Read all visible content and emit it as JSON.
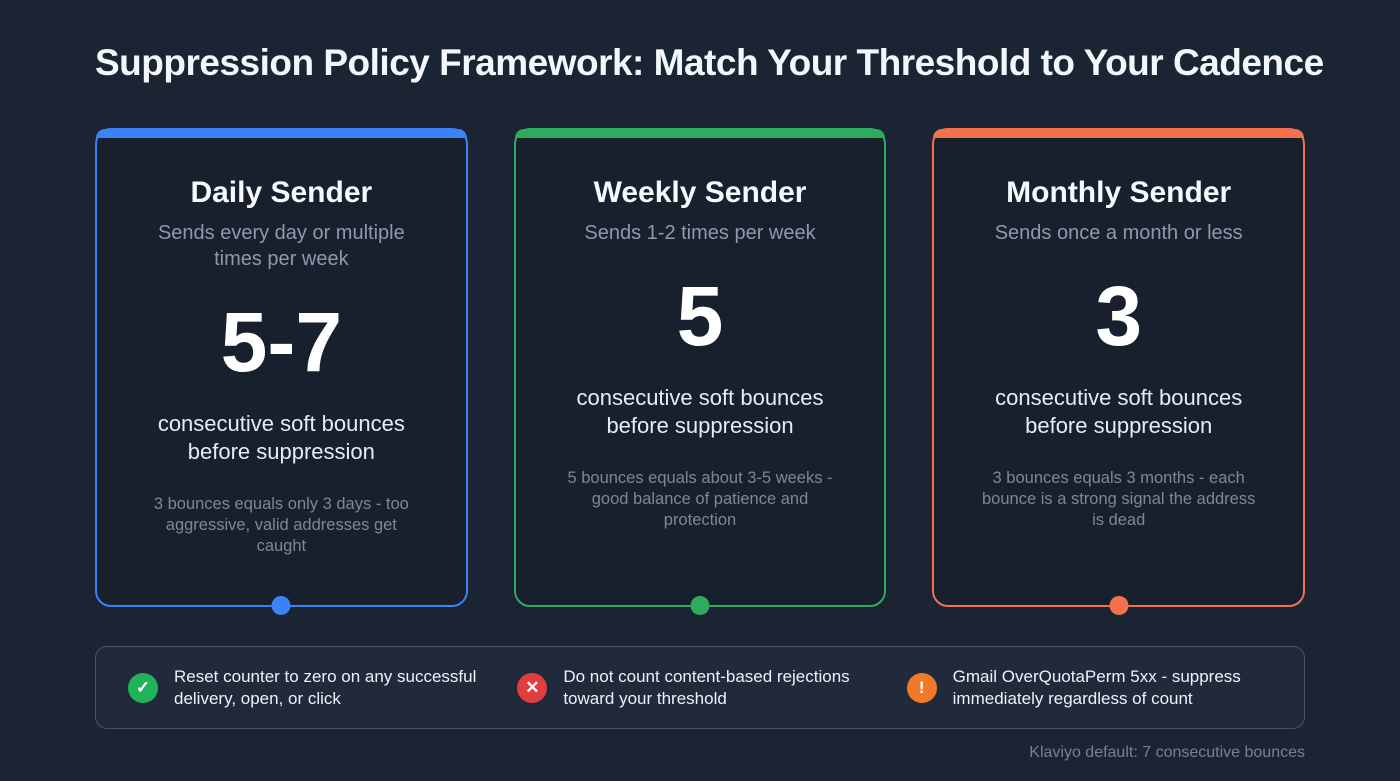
{
  "page": {
    "title": "Suppression Policy Framework: Match Your Threshold to Your Cadence",
    "footnote": "Klaviyo default: 7 consecutive bounces"
  },
  "cards": [
    {
      "title": "Daily Sender",
      "subtitle": "Sends every day or multiple times per week",
      "threshold": "5-7",
      "threshold_label": "consecutive soft bounces before suppression",
      "note": "3 bounces equals only 3 days - too aggressive, valid addresses get caught",
      "accent": "#3b82f6"
    },
    {
      "title": "Weekly Sender",
      "subtitle": "Sends 1-2 times per week",
      "threshold": "5",
      "threshold_label": "consecutive soft bounces before suppression",
      "note": "5 bounces equals about 3-5 weeks - good balance of patience and protection",
      "accent": "#2eab5f"
    },
    {
      "title": "Monthly Sender",
      "subtitle": "Sends once a month or less",
      "threshold": "3",
      "threshold_label": "consecutive soft bounces before suppression",
      "note": "3 bounces equals 3 months - each bounce is a strong signal the address is dead",
      "accent": "#f4714d"
    }
  ],
  "footer": {
    "items": [
      {
        "icon": "check-icon",
        "glyph": "✓",
        "color": "#21b357",
        "text": "Reset counter to zero on any successful delivery, open, or click"
      },
      {
        "icon": "x-icon",
        "glyph": "✕",
        "color": "#e03e3e",
        "text": "Do not count content-based rejections toward your threshold"
      },
      {
        "icon": "warning-icon",
        "glyph": "!",
        "color": "#f07a28",
        "text": "Gmail OverQuotaPerm 5xx - suppress immediately regardless of count"
      }
    ]
  }
}
